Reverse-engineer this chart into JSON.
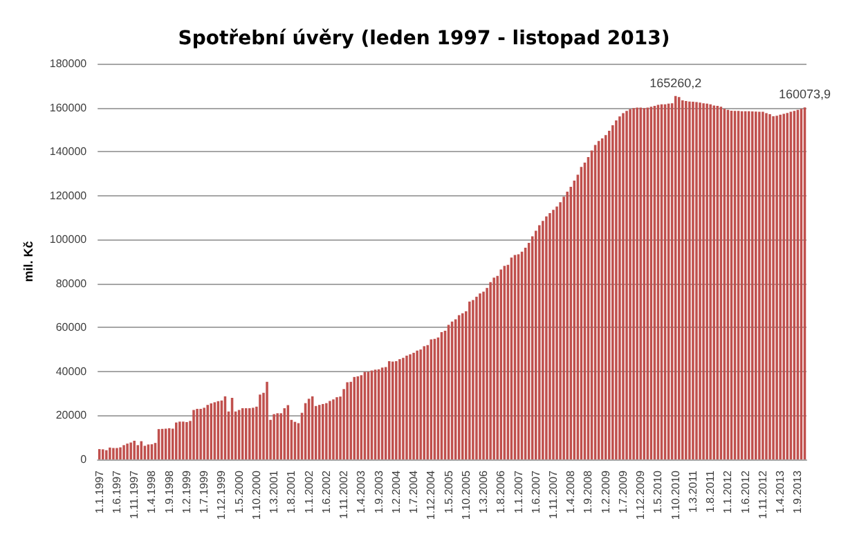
{
  "chart_data": {
    "type": "bar",
    "title": "Spotřební úvěry (leden 1997 - listopad 2013)",
    "ylabel": "mil. Kč",
    "categories": [
      "1.1.1997",
      null,
      null,
      null,
      null,
      "1.6.1997",
      null,
      null,
      null,
      null,
      "1.11.1997",
      null,
      null,
      null,
      null,
      "1.4.1998",
      null,
      null,
      null,
      null,
      "1.9.1998",
      null,
      null,
      null,
      null,
      "1.2.1999",
      null,
      null,
      null,
      null,
      "1.7.1999",
      null,
      null,
      null,
      null,
      "1.12.1999",
      null,
      null,
      null,
      null,
      "1.5.2000",
      null,
      null,
      null,
      null,
      "1.10.2000",
      null,
      null,
      null,
      null,
      "1.3.2001",
      null,
      null,
      null,
      null,
      "1.8.2001",
      null,
      null,
      null,
      null,
      "1.1.2002",
      null,
      null,
      null,
      null,
      "1.6.2002",
      null,
      null,
      null,
      null,
      "1.11.2002",
      null,
      null,
      null,
      null,
      "1.4.2003",
      null,
      null,
      null,
      null,
      "1.9.2003",
      null,
      null,
      null,
      null,
      "1.2.2004",
      null,
      null,
      null,
      null,
      "1.7.2004",
      null,
      null,
      null,
      null,
      "1.12.2004",
      null,
      null,
      null,
      null,
      "1.5.2005",
      null,
      null,
      null,
      null,
      "1.10.2005",
      null,
      null,
      null,
      null,
      "1.3.2006",
      null,
      null,
      null,
      null,
      "1.8.2006",
      null,
      null,
      null,
      null,
      "1.1.2007",
      null,
      null,
      null,
      null,
      "1.6.2007",
      null,
      null,
      null,
      null,
      "1.11.2007",
      null,
      null,
      null,
      null,
      "1.4.2008",
      null,
      null,
      null,
      null,
      "1.9.2008",
      null,
      null,
      null,
      null,
      "1.2.2009",
      null,
      null,
      null,
      null,
      "1.7.2009",
      null,
      null,
      null,
      null,
      "1.12.2009",
      null,
      null,
      null,
      null,
      "1.5.2010",
      null,
      null,
      null,
      null,
      "1.10.2010",
      null,
      null,
      null,
      null,
      "1.3.2011",
      null,
      null,
      null,
      null,
      "1.8.2011",
      null,
      null,
      null,
      null,
      "1.1.2012",
      null,
      null,
      null,
      null,
      "1.6.2012",
      null,
      null,
      null,
      null,
      "1.11.2012",
      null,
      null,
      null,
      null,
      "1.4.2013",
      null,
      null,
      null,
      null,
      "1.9.2013",
      null,
      null
    ],
    "values": [
      4700,
      4600,
      4200,
      5400,
      5200,
      5200,
      5500,
      6500,
      7200,
      7700,
      8500,
      6500,
      8300,
      6200,
      6800,
      6900,
      7500,
      13800,
      13900,
      14000,
      14200,
      14000,
      16800,
      17200,
      17200,
      17000,
      17500,
      22500,
      23000,
      23000,
      23500,
      24800,
      25500,
      26000,
      26500,
      26800,
      28700,
      21800,
      28000,
      21800,
      22500,
      23300,
      23300,
      23300,
      23500,
      24000,
      29500,
      30300,
      35300,
      18000,
      20600,
      21000,
      21000,
      23300,
      24700,
      18000,
      17100,
      16500,
      21200,
      25600,
      27600,
      28700,
      24300,
      24800,
      25200,
      25600,
      26600,
      27300,
      28300,
      28600,
      32000,
      35100,
      35300,
      37500,
      37800,
      38300,
      39800,
      39900,
      40400,
      40800,
      41000,
      41800,
      42000,
      44700,
      44500,
      44700,
      45600,
      46200,
      47200,
      47800,
      48500,
      49500,
      50000,
      51500,
      52000,
      54600,
      54800,
      55500,
      57900,
      58500,
      61200,
      62700,
      63700,
      65600,
      66500,
      67400,
      71800,
      72500,
      74000,
      75500,
      76300,
      78000,
      80600,
      82700,
      83500,
      86400,
      88000,
      88500,
      91800,
      93000,
      93300,
      94500,
      96300,
      98500,
      101500,
      104000,
      106500,
      108500,
      110500,
      112000,
      113500,
      115000,
      117000,
      119500,
      121800,
      124000,
      126800,
      129500,
      133000,
      135000,
      137500,
      140500,
      143000,
      144800,
      146000,
      147500,
      149500,
      152000,
      154200,
      156000,
      157500,
      158500,
      159300,
      159800,
      160000,
      160000,
      159800,
      160000,
      160400,
      160800,
      161300,
      161500,
      161500,
      161800,
      162000,
      165260.2,
      164800,
      163300,
      163000,
      162800,
      162700,
      162500,
      162300,
      162000,
      161800,
      161500,
      161000,
      160800,
      160400,
      159500,
      159000,
      158600,
      158500,
      158500,
      158400,
      158400,
      158400,
      158300,
      158200,
      158100,
      158100,
      157500,
      157000,
      156100,
      156300,
      156800,
      157200,
      157600,
      158100,
      158500,
      159000,
      159500,
      160073.9
    ],
    "value_labels": [
      null,
      null,
      null,
      null,
      null,
      null,
      null,
      null,
      null,
      null,
      null,
      null,
      null,
      null,
      null,
      null,
      null,
      null,
      null,
      null,
      null,
      null,
      null,
      null,
      null,
      null,
      null,
      null,
      null,
      null,
      null,
      null,
      null,
      null,
      null,
      null,
      null,
      null,
      null,
      null,
      null,
      null,
      null,
      null,
      null,
      null,
      null,
      null,
      null,
      null,
      null,
      null,
      null,
      null,
      null,
      null,
      null,
      null,
      null,
      null,
      null,
      null,
      null,
      null,
      null,
      null,
      null,
      null,
      null,
      null,
      null,
      null,
      null,
      null,
      null,
      null,
      null,
      null,
      null,
      null,
      null,
      null,
      null,
      null,
      null,
      null,
      null,
      null,
      null,
      null,
      null,
      null,
      null,
      null,
      null,
      null,
      null,
      null,
      null,
      null,
      null,
      null,
      null,
      null,
      null,
      null,
      null,
      null,
      null,
      null,
      null,
      null,
      null,
      null,
      null,
      null,
      null,
      null,
      null,
      null,
      null,
      null,
      null,
      null,
      null,
      null,
      null,
      null,
      null,
      null,
      null,
      null,
      null,
      null,
      null,
      null,
      null,
      null,
      null,
      null,
      null,
      null,
      null,
      null,
      null,
      null,
      null,
      null,
      null,
      null,
      null,
      null,
      null,
      null,
      null,
      null,
      null,
      null,
      null,
      null,
      null,
      null,
      null,
      null,
      null,
      "165260,2",
      null,
      null,
      null,
      null,
      null,
      null,
      null,
      null,
      null,
      null,
      null,
      null,
      null,
      null,
      null,
      null,
      null,
      null,
      null,
      null,
      null,
      null,
      null,
      null,
      null,
      null,
      null,
      null,
      null,
      null,
      null,
      null,
      null,
      null,
      null,
      null,
      "160073,9"
    ],
    "color": "#c0504d",
    "ylim": [
      0,
      180000
    ],
    "yticks": [
      0,
      20000,
      40000,
      60000,
      80000,
      100000,
      120000,
      140000,
      160000,
      180000
    ],
    "grid": "y"
  }
}
